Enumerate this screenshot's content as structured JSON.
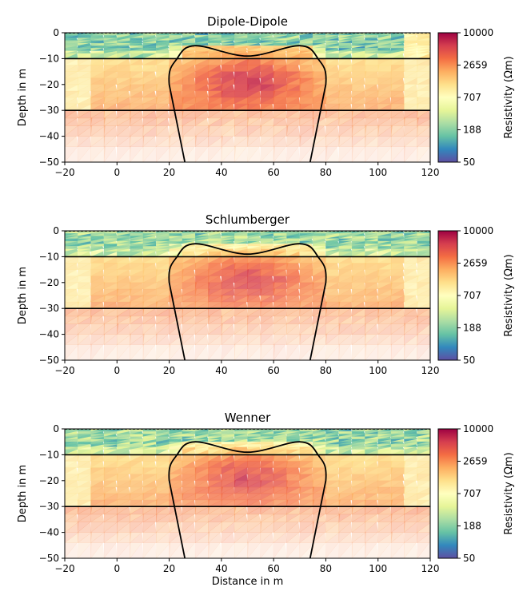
{
  "chart_data": [
    {
      "type": "heatmap",
      "title": "Dipole-Dipole",
      "xlabel": "",
      "ylabel": "Depth in m",
      "xlim": [
        -20,
        120
      ],
      "ylim": [
        -50,
        0
      ],
      "xticks": [
        "−20",
        "0",
        "20",
        "40",
        "60",
        "80",
        "100",
        "120"
      ],
      "yticks": [
        "0",
        "−10",
        "−20",
        "−30",
        "−40",
        "−50"
      ],
      "colorbar": {
        "label": "Resistivity (Ωm)",
        "scale": "log",
        "range": [
          50,
          10000
        ],
        "ticks": [
          "50",
          "188",
          "707",
          "2659",
          "10000"
        ]
      },
      "layer_boundaries_depth_m": [
        -10,
        -30
      ],
      "anomaly_outline": [
        [
          26,
          -50
        ],
        [
          20,
          -20
        ],
        [
          23,
          -10
        ],
        [
          30,
          -5
        ],
        [
          50,
          -9
        ],
        [
          70,
          -5
        ],
        [
          77,
          -10
        ],
        [
          80,
          -20
        ],
        [
          74,
          -50
        ]
      ]
    },
    {
      "type": "heatmap",
      "title": "Schlumberger",
      "xlabel": "",
      "ylabel": "Depth in m",
      "xlim": [
        -20,
        120
      ],
      "ylim": [
        -50,
        0
      ],
      "xticks": [
        "−20",
        "0",
        "20",
        "40",
        "60",
        "80",
        "100",
        "120"
      ],
      "yticks": [
        "0",
        "−10",
        "−20",
        "−30",
        "−40",
        "−50"
      ],
      "colorbar": {
        "label": "Resistivity (Ωm)",
        "scale": "log",
        "range": [
          50,
          10000
        ],
        "ticks": [
          "50",
          "188",
          "707",
          "2659",
          "10000"
        ]
      },
      "layer_boundaries_depth_m": [
        -10,
        -30
      ],
      "anomaly_outline": [
        [
          26,
          -50
        ],
        [
          20,
          -20
        ],
        [
          23,
          -10
        ],
        [
          30,
          -5
        ],
        [
          50,
          -9
        ],
        [
          70,
          -5
        ],
        [
          77,
          -10
        ],
        [
          80,
          -20
        ],
        [
          74,
          -50
        ]
      ]
    },
    {
      "type": "heatmap",
      "title": "Wenner",
      "xlabel": "Distance in m",
      "ylabel": "Depth in m",
      "xlim": [
        -20,
        120
      ],
      "ylim": [
        -50,
        0
      ],
      "xticks": [
        "−20",
        "0",
        "20",
        "40",
        "60",
        "80",
        "100",
        "120"
      ],
      "yticks": [
        "0",
        "−10",
        "−20",
        "−30",
        "−40",
        "−50"
      ],
      "colorbar": {
        "label": "Resistivity (Ωm)",
        "scale": "log",
        "range": [
          50,
          10000
        ],
        "ticks": [
          "50",
          "188",
          "707",
          "2659",
          "10000"
        ]
      },
      "layer_boundaries_depth_m": [
        -10,
        -30
      ],
      "anomaly_outline": [
        [
          26,
          -50
        ],
        [
          20,
          -20
        ],
        [
          23,
          -10
        ],
        [
          30,
          -5
        ],
        [
          50,
          -9
        ],
        [
          70,
          -5
        ],
        [
          77,
          -10
        ],
        [
          80,
          -20
        ],
        [
          74,
          -50
        ]
      ]
    }
  ],
  "colormap": {
    "name": "Spectral_r",
    "stops": [
      "#5e4fa2",
      "#3288bd",
      "#66c2a5",
      "#abdda4",
      "#e6f598",
      "#ffffbf",
      "#fee08b",
      "#fdae61",
      "#f46d43",
      "#d53e4f",
      "#9e0142"
    ]
  }
}
